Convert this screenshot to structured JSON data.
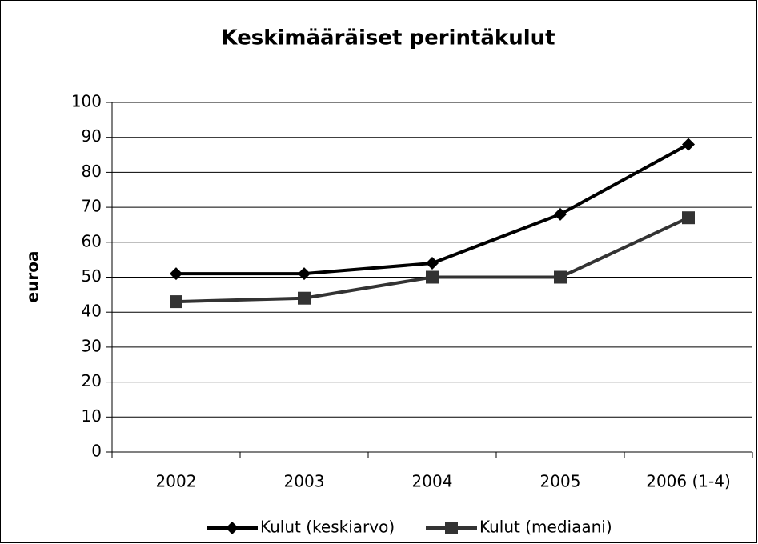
{
  "chart_data": {
    "type": "line",
    "title": "Keskimääräiset perintäkulut",
    "y_label": "euroa",
    "categories": [
      "2002",
      "2003",
      "2004",
      "2005",
      "2006 (1-4)"
    ],
    "series": [
      {
        "name": "Kulut (keskiarvo)",
        "color": "#000000",
        "marker": "diamond",
        "values": [
          51,
          51,
          54,
          68,
          88
        ]
      },
      {
        "name": "Kulut (mediaani)",
        "color": "#333333",
        "marker": "square",
        "values": [
          43,
          44,
          50,
          50,
          67
        ]
      }
    ],
    "ylim": [
      0,
      100
    ],
    "yticks": [
      0,
      10,
      20,
      30,
      40,
      50,
      60,
      70,
      80,
      90,
      100
    ],
    "grid": true,
    "legend": "bottom"
  }
}
